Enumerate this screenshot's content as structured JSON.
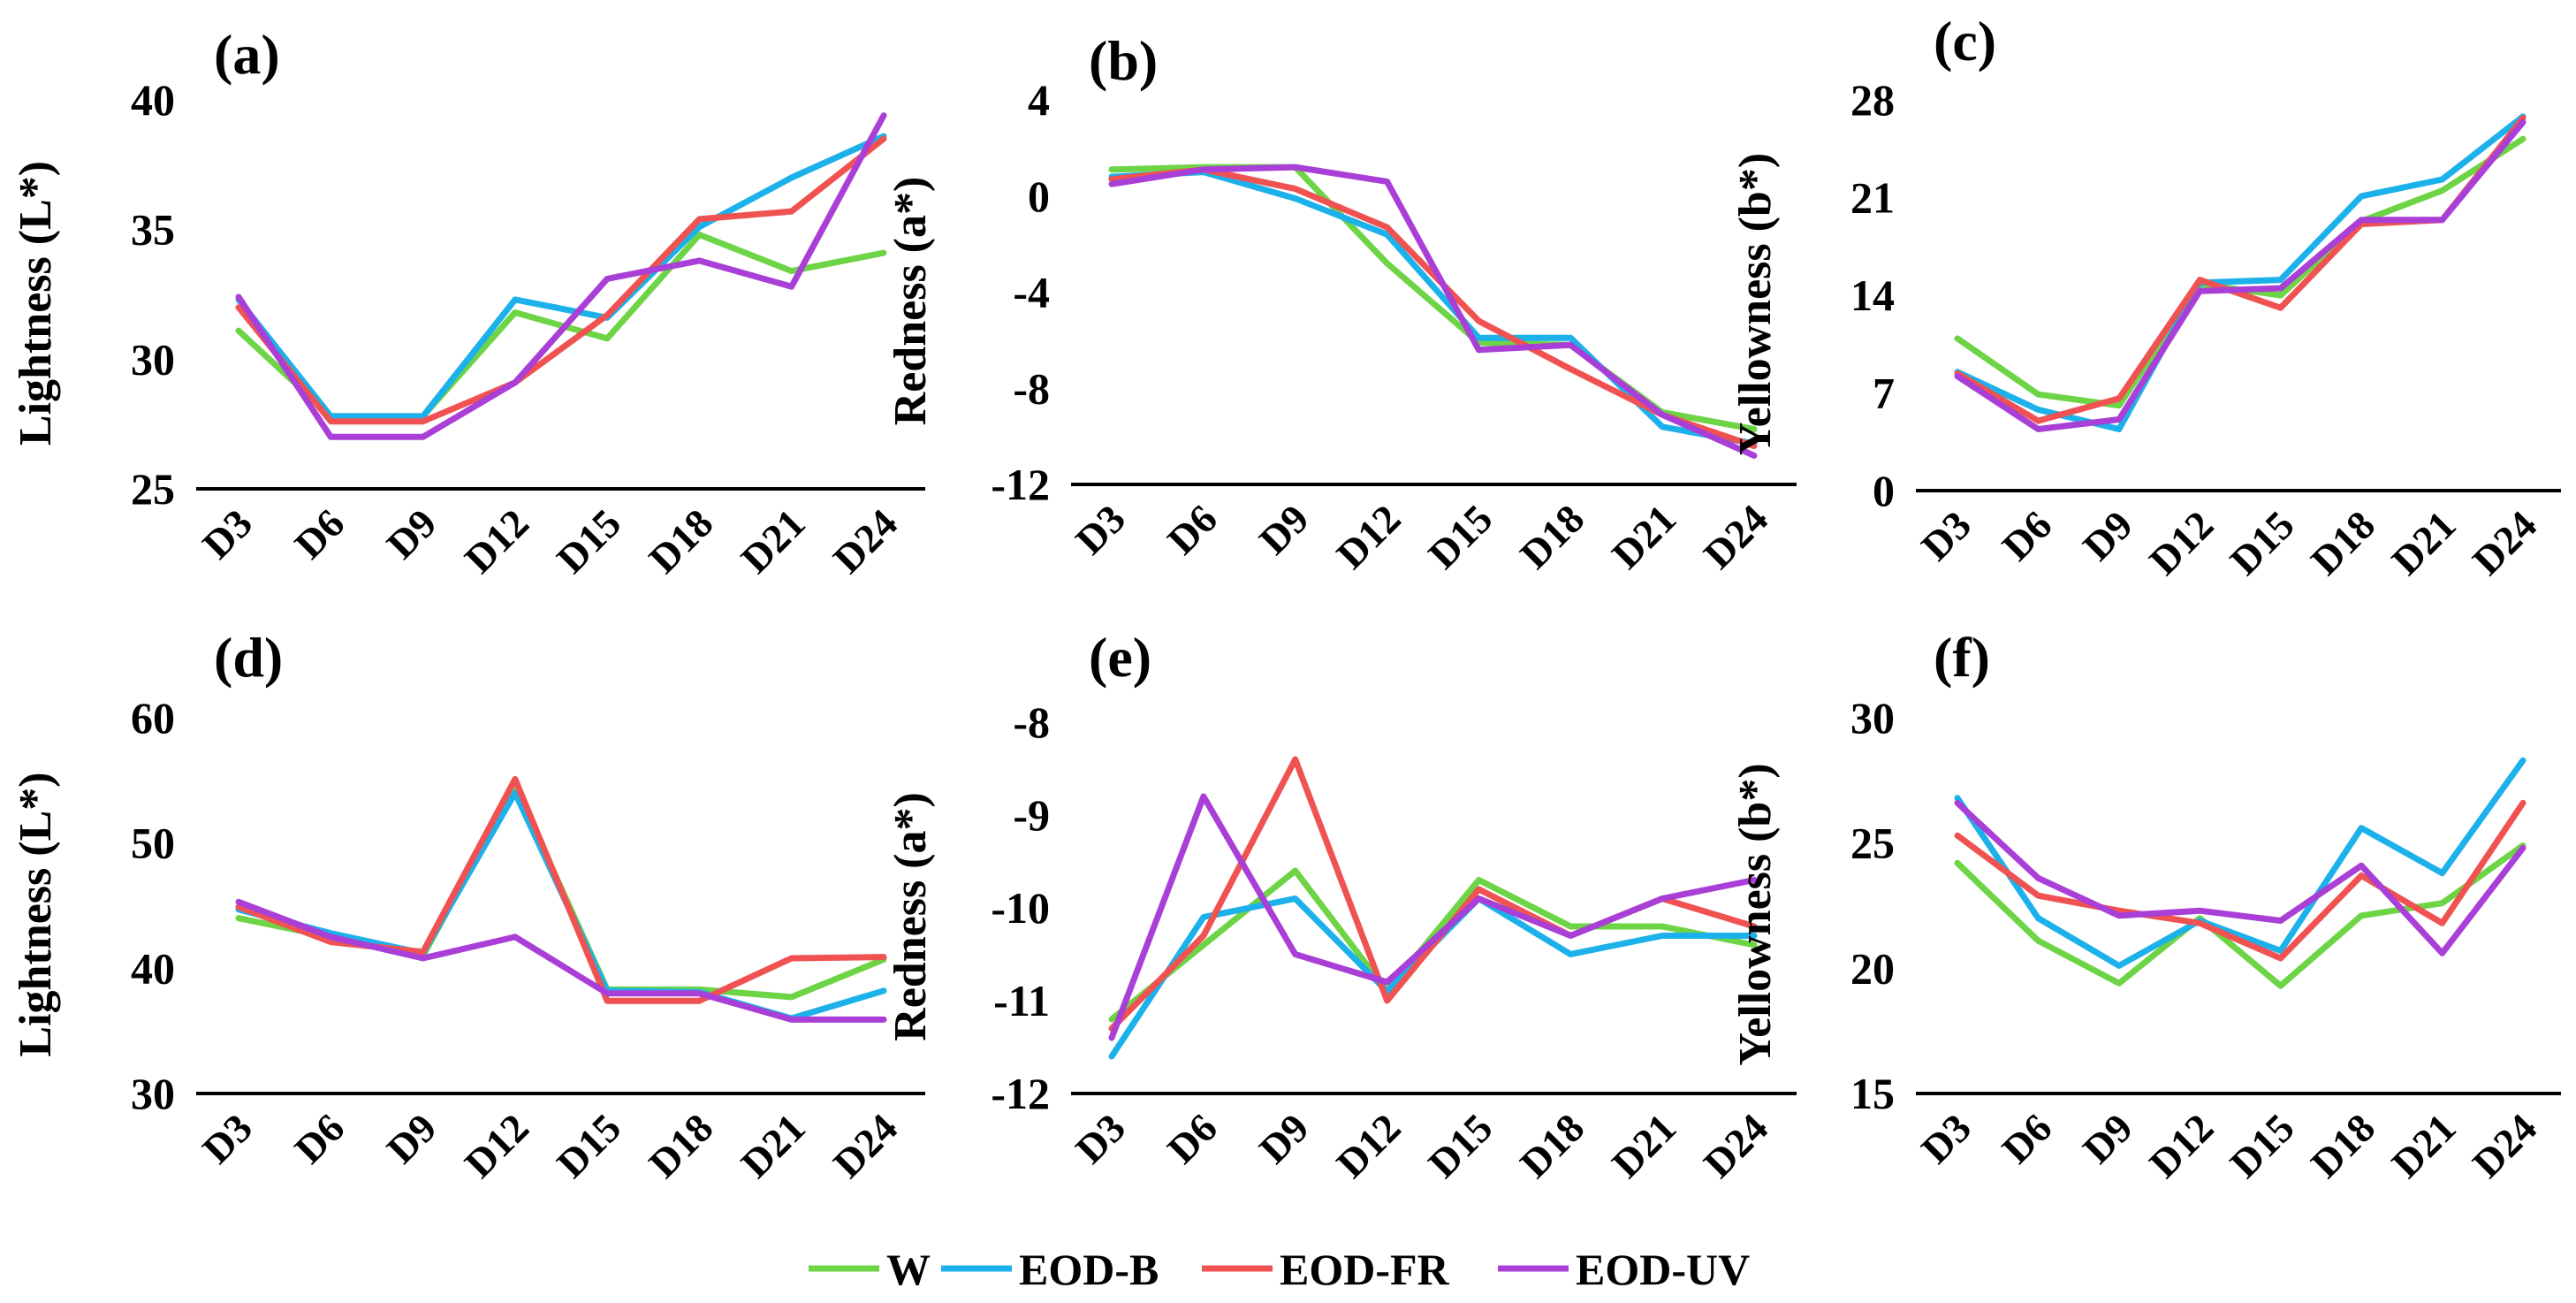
{
  "colors": {
    "W": "#6dd446",
    "EOD-B": "#1cb1ea",
    "EOD-FR": "#f05252",
    "EOD-UV": "#a93fd6"
  },
  "legend": [
    {
      "name": "W",
      "color": "#6dd446"
    },
    {
      "name": "EOD-B",
      "color": "#1cb1ea"
    },
    {
      "name": "EOD-FR",
      "color": "#f05252"
    },
    {
      "name": "EOD-UV",
      "color": "#a93fd6"
    }
  ],
  "chart_data": [
    {
      "type": "line",
      "panel": "(a)",
      "title": "",
      "xlabel": "",
      "ylabel": "Lightness (L*)",
      "categories": [
        "D3",
        "D6",
        "D9",
        "D12",
        "D15",
        "D18",
        "D21",
        "D24"
      ],
      "ylim": [
        25,
        40
      ],
      "yticks": [
        "25",
        "30",
        "35",
        "40"
      ],
      "series": [
        {
          "name": "W",
          "values": [
            31.1,
            27.8,
            27.8,
            31.8,
            30.8,
            34.8,
            33.4,
            34.1
          ]
        },
        {
          "name": "EOD-B",
          "values": [
            32.3,
            27.8,
            27.8,
            32.3,
            31.6,
            35.1,
            37.0,
            38.6
          ]
        },
        {
          "name": "EOD-FR",
          "values": [
            32.0,
            27.6,
            27.6,
            29.1,
            31.7,
            35.4,
            35.7,
            38.5
          ]
        },
        {
          "name": "EOD-UV",
          "values": [
            32.4,
            27.0,
            27.0,
            29.1,
            33.1,
            33.8,
            32.8,
            39.4
          ]
        }
      ]
    },
    {
      "type": "line",
      "panel": "(b)",
      "title": "",
      "xlabel": "",
      "ylabel": "Redness (a*)",
      "categories": [
        "D3",
        "D6",
        "D9",
        "D12",
        "D15",
        "D18",
        "D21",
        "D24"
      ],
      "ylim": [
        -12,
        4
      ],
      "yticks": [
        "-12",
        "-8",
        "-4",
        "0",
        "4"
      ],
      "series": [
        {
          "name": "W",
          "values": [
            1.1,
            1.2,
            1.2,
            -2.8,
            -6.1,
            -6.2,
            -9.0,
            -9.7
          ]
        },
        {
          "name": "EOD-B",
          "values": [
            0.8,
            1.0,
            -0.1,
            -1.6,
            -5.9,
            -5.9,
            -9.6,
            -10.3
          ]
        },
        {
          "name": "EOD-FR",
          "values": [
            0.7,
            1.1,
            0.3,
            -1.3,
            -5.2,
            -7.2,
            -9.1,
            -10.4
          ]
        },
        {
          "name": "EOD-UV",
          "values": [
            0.5,
            1.1,
            1.2,
            0.6,
            -6.4,
            -6.2,
            -9.1,
            -10.8
          ]
        }
      ]
    },
    {
      "type": "line",
      "panel": "(c)",
      "title": "",
      "xlabel": "",
      "ylabel": "Yellowness (b*)",
      "categories": [
        "D3",
        "D6",
        "D9",
        "D12",
        "D15",
        "D18",
        "D21",
        "D24"
      ],
      "ylim": [
        0,
        28
      ],
      "yticks": [
        "0",
        "7",
        "14",
        "21",
        "28"
      ],
      "series": [
        {
          "name": "W",
          "values": [
            10.9,
            6.9,
            6.1,
            14.8,
            14.0,
            19.3,
            21.5,
            25.2
          ]
        },
        {
          "name": "EOD-B",
          "values": [
            8.5,
            5.8,
            4.4,
            14.9,
            15.1,
            21.1,
            22.3,
            26.8
          ]
        },
        {
          "name": "EOD-FR",
          "values": [
            8.4,
            5.0,
            6.6,
            15.1,
            13.1,
            19.1,
            19.4,
            26.7
          ]
        },
        {
          "name": "EOD-UV",
          "values": [
            8.2,
            4.4,
            5.1,
            14.3,
            14.5,
            19.4,
            19.4,
            26.4
          ]
        }
      ]
    },
    {
      "type": "line",
      "panel": "(d)",
      "title": "",
      "xlabel": "",
      "ylabel": "Lightness (L*)",
      "categories": [
        "D3",
        "D6",
        "D9",
        "D12",
        "D15",
        "D18",
        "D21",
        "D24"
      ],
      "ylim": [
        30,
        60
      ],
      "yticks": [
        "30",
        "40",
        "50",
        "60"
      ],
      "series": [
        {
          "name": "W",
          "values": [
            44.0,
            42.5,
            41.0,
            54.5,
            38.3,
            38.3,
            37.7,
            40.7
          ]
        },
        {
          "name": "EOD-B",
          "values": [
            44.7,
            42.8,
            41.2,
            54.0,
            38.2,
            38.1,
            36.0,
            38.2
          ]
        },
        {
          "name": "EOD-FR",
          "values": [
            44.9,
            42.1,
            41.3,
            55.1,
            37.4,
            37.4,
            40.8,
            40.9
          ]
        },
        {
          "name": "EOD-UV",
          "values": [
            45.3,
            42.5,
            40.8,
            42.5,
            38.0,
            38.0,
            35.9,
            35.9
          ]
        }
      ]
    },
    {
      "type": "line",
      "panel": "(e)",
      "title": "",
      "xlabel": "",
      "ylabel": "Redness (a*)",
      "categories": [
        "D3",
        "D6",
        "D9",
        "D12",
        "D15",
        "D18",
        "D21",
        "D24"
      ],
      "ylim": [
        -12,
        -8
      ],
      "yticks": [
        "-12",
        "-11",
        "-10",
        "-9",
        "-8"
      ],
      "series": [
        {
          "name": "W",
          "values": [
            -11.2,
            -10.4,
            -9.6,
            -10.9,
            -9.7,
            -10.2,
            -10.2,
            -10.4
          ]
        },
        {
          "name": "EOD-B",
          "values": [
            -11.6,
            -10.1,
            -9.9,
            -10.9,
            -9.9,
            -10.5,
            -10.3,
            -10.3
          ]
        },
        {
          "name": "EOD-FR",
          "values": [
            -11.3,
            -10.3,
            -8.4,
            -11.0,
            -9.8,
            -10.3,
            -9.9,
            -10.2
          ]
        },
        {
          "name": "EOD-UV",
          "values": [
            -11.4,
            -8.8,
            -10.5,
            -10.8,
            -9.9,
            -10.3,
            -9.9,
            -9.7
          ]
        }
      ]
    },
    {
      "type": "line",
      "panel": "(f)",
      "title": "",
      "xlabel": "",
      "ylabel": "Yellowness (b*)",
      "categories": [
        "D3",
        "D6",
        "D9",
        "D12",
        "D15",
        "D18",
        "D21",
        "D24"
      ],
      "ylim": [
        15,
        30
      ],
      "yticks": [
        "15",
        "20",
        "25",
        "30"
      ],
      "series": [
        {
          "name": "W",
          "values": [
            24.2,
            21.1,
            19.4,
            22.0,
            19.3,
            22.1,
            22.6,
            24.9
          ]
        },
        {
          "name": "EOD-B",
          "values": [
            26.8,
            22.0,
            20.1,
            21.9,
            20.7,
            25.6,
            23.8,
            28.3
          ]
        },
        {
          "name": "EOD-FR",
          "values": [
            25.3,
            22.9,
            22.3,
            21.8,
            20.4,
            23.7,
            21.8,
            26.6
          ]
        },
        {
          "name": "EOD-UV",
          "values": [
            26.6,
            23.6,
            22.1,
            22.3,
            21.9,
            24.1,
            20.6,
            24.8
          ]
        }
      ]
    }
  ]
}
